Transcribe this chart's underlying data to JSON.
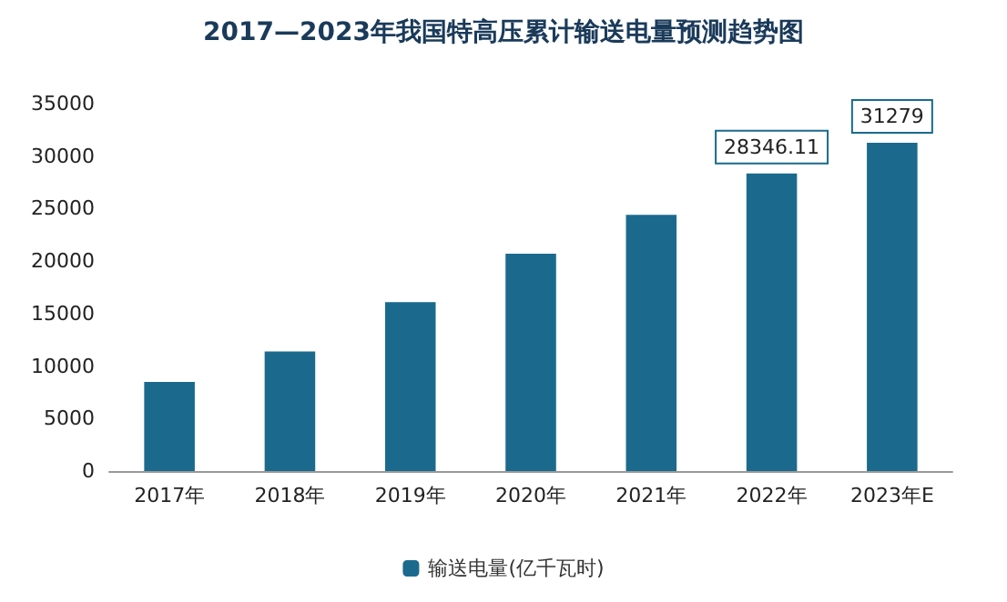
{
  "chart_data": {
    "type": "bar",
    "title": "2017—2023年我国特高压累计输送电量预测趋势图",
    "categories": [
      "2017年",
      "2018年",
      "2019年",
      "2020年",
      "2021年",
      "2022年",
      "2023年E"
    ],
    "series": [
      {
        "name": "输送电量(亿千瓦时)",
        "color": "#1b6a8e",
        "values": [
          8500,
          11400,
          16100,
          20700,
          24400,
          28346.11,
          31279
        ],
        "value_labels": [
          null,
          null,
          null,
          null,
          null,
          "28346.11",
          "31279"
        ]
      }
    ],
    "ylim": [
      0,
      35000
    ],
    "yticks": [
      0,
      5000,
      10000,
      15000,
      20000,
      25000,
      30000,
      35000
    ],
    "grid": false,
    "legend": "bottom"
  }
}
